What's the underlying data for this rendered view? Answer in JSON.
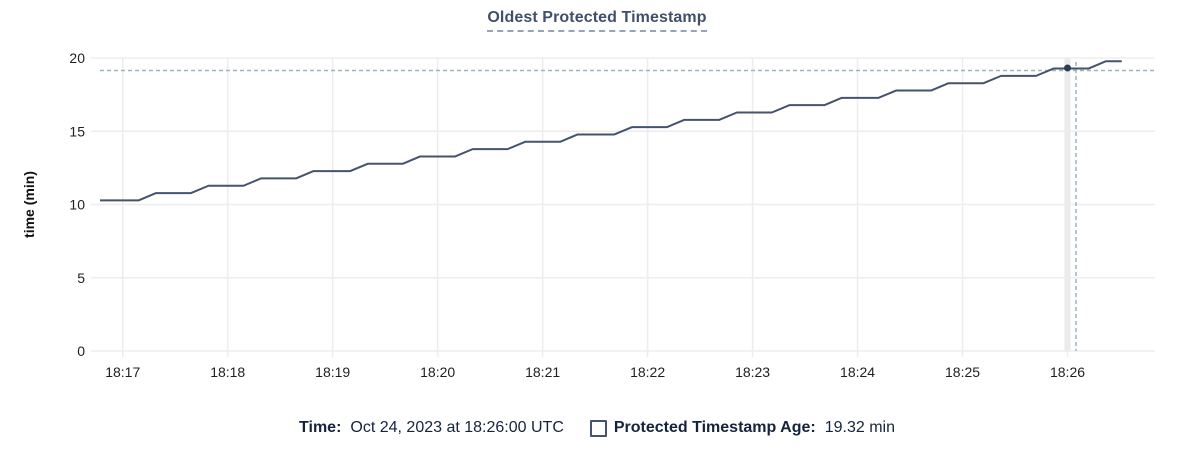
{
  "title": "Oldest Protected Timestamp",
  "colors": {
    "line": "#44536E",
    "title": "#3F506C",
    "crosshair": "#9FB4C1",
    "dot": "#2C3A52",
    "grid": "#EDEDED",
    "highlight_band": "#EAEAEA",
    "tick_text": "#1F1F1F",
    "legend_text": "#15233E",
    "checkbox_border": "#44536E"
  },
  "chart_data": {
    "type": "line",
    "title": "Oldest Protected Timestamp",
    "xlabel": "",
    "ylabel": "time (min)",
    "ylim": [
      0,
      20
    ],
    "y_ticks": [
      0,
      5,
      10,
      15,
      20
    ],
    "x_range_seconds": [
      47,
      650
    ],
    "x_ticks": [
      {
        "t": 60,
        "label": "18:17"
      },
      {
        "t": 120,
        "label": "18:18"
      },
      {
        "t": 180,
        "label": "18:19"
      },
      {
        "t": 240,
        "label": "18:20"
      },
      {
        "t": 300,
        "label": "18:21"
      },
      {
        "t": 360,
        "label": "18:22"
      },
      {
        "t": 420,
        "label": "18:23"
      },
      {
        "t": 480,
        "label": "18:24"
      },
      {
        "t": 540,
        "label": "18:25"
      },
      {
        "t": 600,
        "label": "18:26"
      }
    ],
    "grid": true,
    "legend_position": "bottom",
    "series": [
      {
        "name": "Protected Timestamp Age",
        "unit": "min",
        "points": [
          [
            47,
            10.28
          ],
          [
            69,
            10.28
          ],
          [
            79,
            10.78
          ],
          [
            99,
            10.78
          ],
          [
            109,
            11.28
          ],
          [
            129,
            11.28
          ],
          [
            139,
            11.78
          ],
          [
            159,
            11.78
          ],
          [
            169,
            12.28
          ],
          [
            190,
            12.28
          ],
          [
            200,
            12.78
          ],
          [
            220,
            12.78
          ],
          [
            230,
            13.28
          ],
          [
            250,
            13.28
          ],
          [
            260,
            13.78
          ],
          [
            280,
            13.78
          ],
          [
            290,
            14.28
          ],
          [
            310,
            14.28
          ],
          [
            320,
            14.78
          ],
          [
            341,
            14.78
          ],
          [
            351,
            15.28
          ],
          [
            371,
            15.28
          ],
          [
            381,
            15.78
          ],
          [
            401,
            15.78
          ],
          [
            411,
            16.28
          ],
          [
            431,
            16.28
          ],
          [
            441,
            16.78
          ],
          [
            461,
            16.78
          ],
          [
            471,
            17.28
          ],
          [
            492,
            17.28
          ],
          [
            502,
            17.78
          ],
          [
            522,
            17.78
          ],
          [
            532,
            18.28
          ],
          [
            552,
            18.28
          ],
          [
            562,
            18.78
          ],
          [
            582,
            18.78
          ],
          [
            592,
            19.28
          ],
          [
            612,
            19.28
          ],
          [
            622,
            19.78
          ],
          [
            631,
            19.78
          ]
        ]
      }
    ],
    "hover": {
      "time_s": 600,
      "time_tick_label": "18:26",
      "value": 19.32
    }
  },
  "tooltip": {
    "time_label": "Time:",
    "time_value": "Oct 24, 2023 at 18:26:00 UTC",
    "series_label": "Protected Timestamp Age:",
    "series_value": "19.32 min"
  }
}
